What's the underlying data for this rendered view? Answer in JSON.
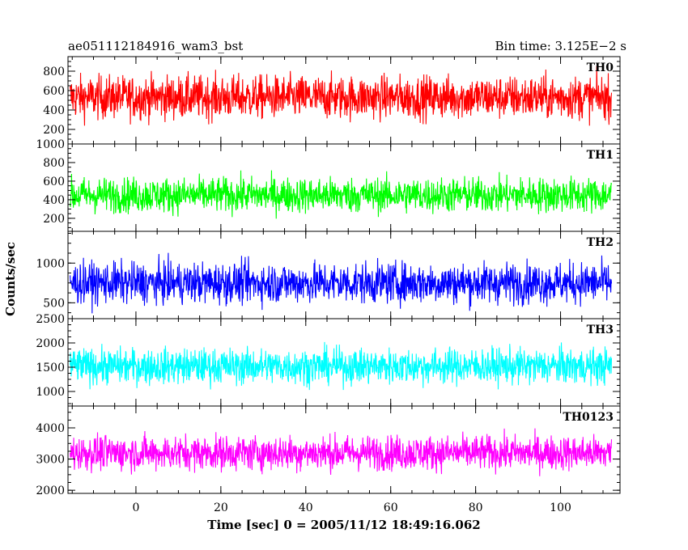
{
  "chart_data": {
    "type": "line",
    "title_left": "ae051112184916_wam3_bst",
    "title_right": "Bin time: 3.125E−2 s",
    "xlabel": "Time [sec] 0 = 2005/11/12 18:49:16.062",
    "ylabel": "Counts/sec",
    "xlim": [
      -16,
      114
    ],
    "x_ticks": [
      0,
      20,
      40,
      60,
      80,
      100
    ],
    "x_start": -15.5,
    "x_end": 112,
    "bin_time": 0.03125,
    "grid": false,
    "panels": [
      {
        "name": "TH0",
        "color": "#ff0000",
        "ylim": [
          50,
          950
        ],
        "y_ticks": [
          200,
          400,
          600,
          800
        ],
        "mean": 530,
        "spread": 200
      },
      {
        "name": "TH1",
        "color": "#00ff00",
        "ylim": [
          60,
          1000
        ],
        "y_ticks": [
          200,
          400,
          600,
          800,
          1000
        ],
        "mean": 450,
        "spread": 170
      },
      {
        "name": "TH2",
        "color": "#0000ff",
        "ylim": [
          300,
          1400
        ],
        "y_ticks": [
          500,
          1000
        ],
        "mean": 750,
        "spread": 230
      },
      {
        "name": "TH3",
        "color": "#00ffff",
        "ylim": [
          700,
          2500
        ],
        "y_ticks": [
          1000,
          1500,
          2000,
          2500
        ],
        "mean": 1520,
        "spread": 330
      },
      {
        "name": "TH0123",
        "color": "#ff00ff",
        "ylim": [
          1900,
          4700
        ],
        "y_ticks": [
          2000,
          3000,
          4000
        ],
        "mean": 3200,
        "spread": 500
      }
    ]
  }
}
